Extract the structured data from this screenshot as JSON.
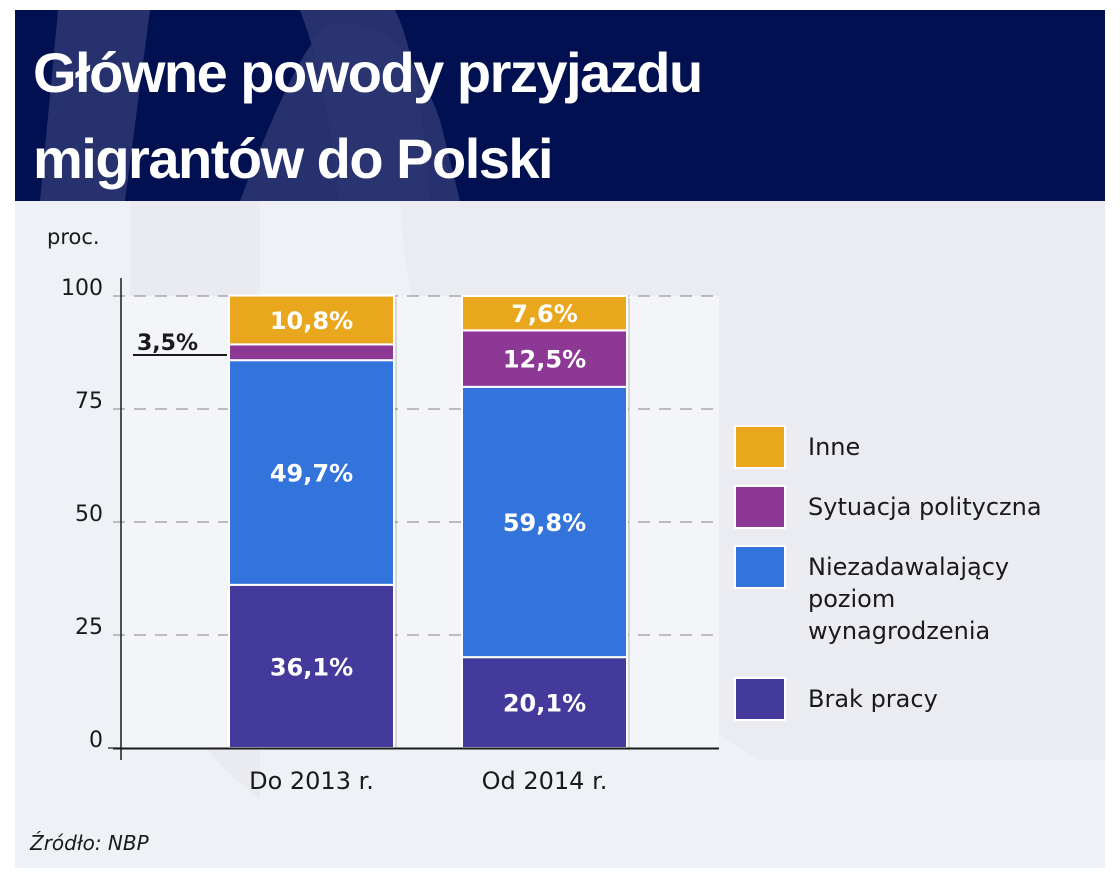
{
  "header": {
    "title_lines": [
      "Główne powody przyjazdu",
      "migrantów do Polski"
    ]
  },
  "colors": {
    "header_bg": "#001050",
    "panel_bg": "#eef1f5",
    "plot_bg": "#f3f5f8",
    "grid": "#9a9a9a",
    "axis": "#1a1a1a"
  },
  "chart_data": {
    "type": "bar",
    "stacked": true,
    "title": "Główne powody przyjazdu migrantów do Polski",
    "ylabel": "proc.",
    "xlabel": "",
    "ylim": [
      0,
      100
    ],
    "yticks": [
      0,
      25,
      50,
      75,
      100
    ],
    "grid": true,
    "legend_position": "right",
    "categories": [
      "Do 2013 r.",
      "Od 2014 r."
    ],
    "series": [
      {
        "name": "Brak pracy",
        "color": "#433a9c",
        "values": [
          36.1,
          20.1
        ],
        "labels": [
          "36,1%",
          "20,1%"
        ]
      },
      {
        "name": "Niezadawalający poziom wynagrodzenia",
        "color": "#3373dc",
        "values": [
          49.7,
          59.8
        ],
        "labels": [
          "49,7%",
          "59,8%"
        ]
      },
      {
        "name": "Sytuacja polityczna",
        "color": "#8e3896",
        "values": [
          3.5,
          12.5
        ],
        "labels": [
          "3,5%",
          "12,5%"
        ]
      },
      {
        "name": "Inne",
        "color": "#e9a71e",
        "values": [
          10.8,
          7.6
        ],
        "labels": [
          "10,8%",
          "7,6%"
        ]
      }
    ],
    "legend": [
      {
        "name": "Inne",
        "lines": [
          "Inne"
        ],
        "color": "#e9a71e"
      },
      {
        "name": "Sytuacja polityczna",
        "lines": [
          "Sytuacja polityczna"
        ],
        "color": "#8e3896"
      },
      {
        "name": "Niezadawalający poziom wynagrodzenia",
        "lines": [
          "Niezadawalający",
          "poziom",
          "wynagrodzenia"
        ],
        "color": "#3373dc"
      },
      {
        "name": "Brak pracy",
        "lines": [
          "Brak pracy"
        ],
        "color": "#433a9c"
      }
    ],
    "callout": {
      "category": "Do 2013 r.",
      "series": "Sytuacja polityczna",
      "text": "3,5%"
    },
    "source": "Źródło: NBP"
  }
}
